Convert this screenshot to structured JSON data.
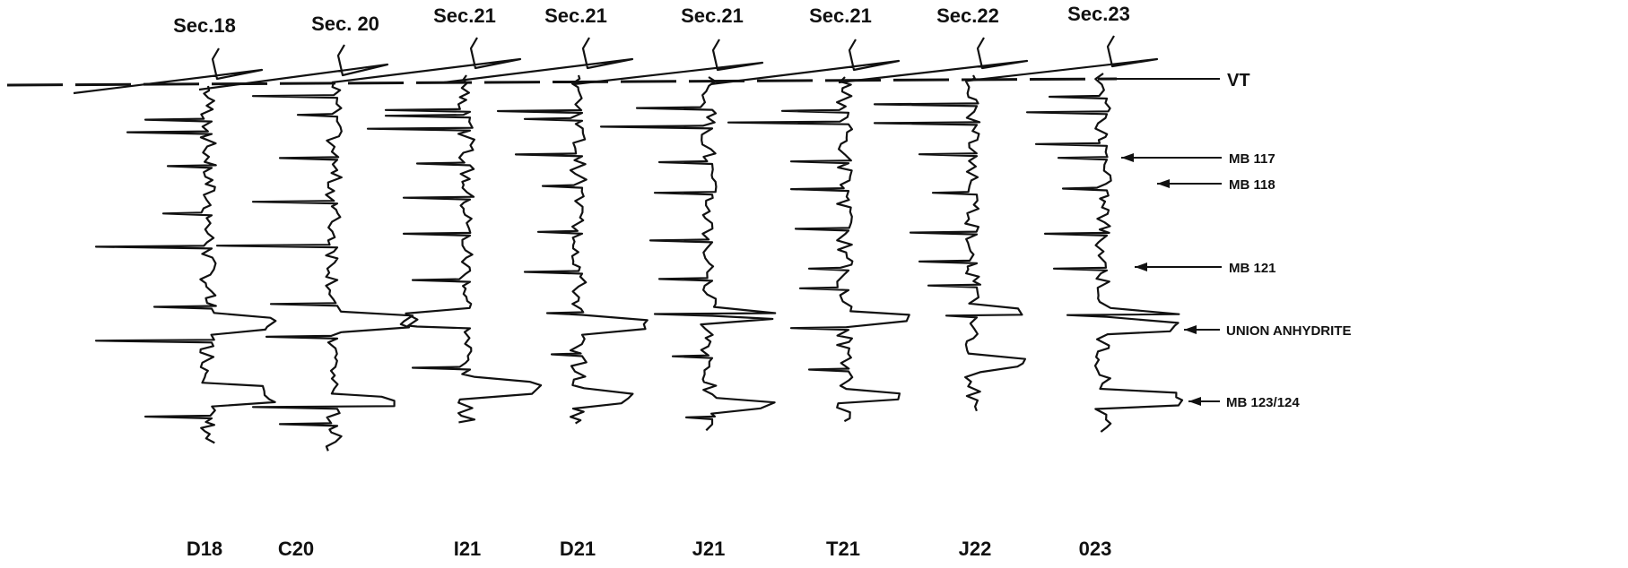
{
  "sections": [
    "Sec.18",
    "Sec. 20",
    "Sec.21",
    "Sec.21",
    "Sec.21",
    "Sec.21",
    "Sec.22",
    "Sec.23"
  ],
  "wells": [
    "D18",
    "C20",
    "I21",
    "D21",
    "J21",
    "T21",
    "J22",
    "023"
  ],
  "datum_label": "VT",
  "markers": [
    {
      "label": "MB 117"
    },
    {
      "label": "MB 118"
    },
    {
      "label": "MB 121"
    },
    {
      "label": "UNION ANHYDRITE"
    },
    {
      "label": "MB 123/124"
    }
  ],
  "colors": {
    "ink": "#111111",
    "background": "#ffffff"
  }
}
